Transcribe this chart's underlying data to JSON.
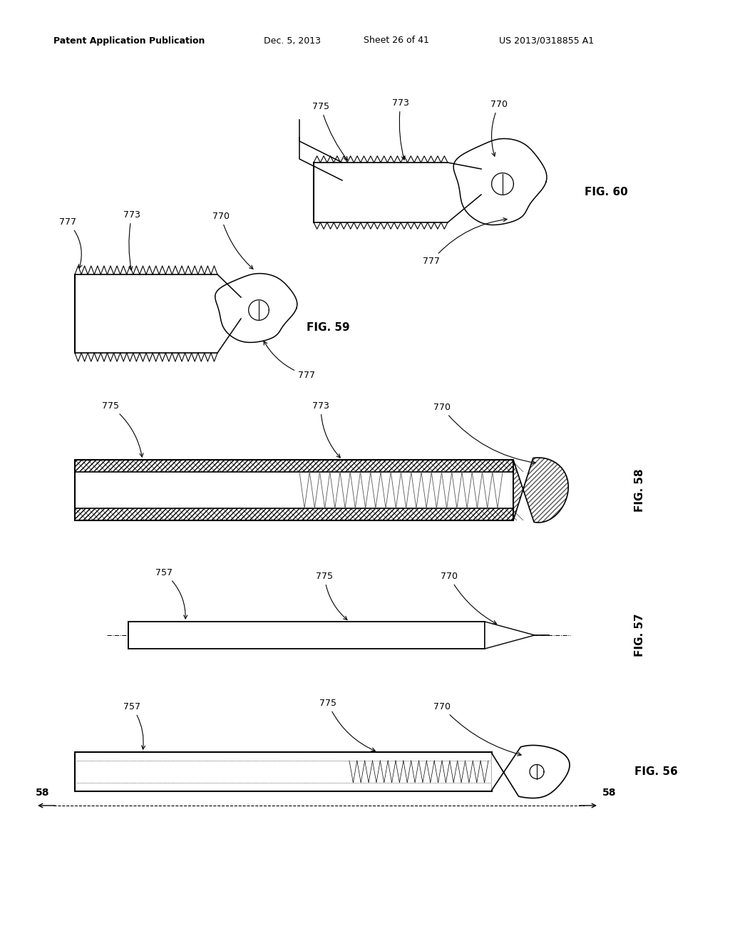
{
  "bg_color": "#ffffff",
  "header_text": "Patent Application Publication",
  "header_date": "Dec. 5, 2013",
  "header_sheet": "Sheet 26 of 41",
  "header_patent": "US 2013/0318855 A1",
  "fig56_label": "FIG. 56",
  "fig57_label": "FIG. 57",
  "fig58_label": "FIG. 58",
  "fig59_label": "FIG. 59",
  "fig60_label": "FIG. 60"
}
